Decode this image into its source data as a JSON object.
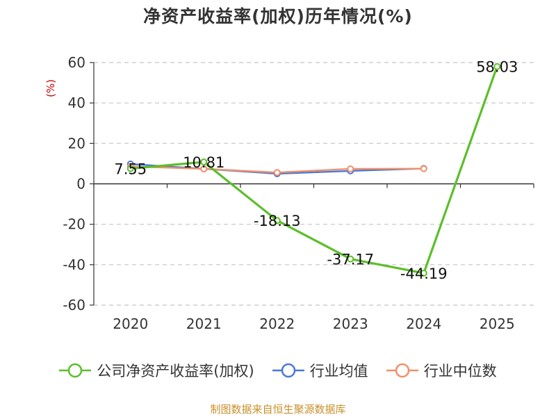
{
  "chart_data": {
    "type": "line",
    "title": "净资产收益率(加权)历年情况(%)",
    "ylabel": "(%)",
    "ylim": [
      -60,
      60
    ],
    "yticks": [
      60,
      40,
      20,
      0,
      -20,
      -40,
      -60
    ],
    "categories": [
      "2020",
      "2021",
      "2022",
      "2023",
      "2024",
      "2025"
    ],
    "grid": true,
    "legend_position": "bottom",
    "series": [
      {
        "name": "公司净资产收益率(加权)",
        "color": "#5bbf2a",
        "values": [
          7.55,
          10.81,
          -18.13,
          -37.17,
          -44.19,
          58.03
        ],
        "labels": [
          "7.55",
          "10.81",
          "-18.13",
          "-37.17",
          "-44.19",
          "58.03"
        ]
      },
      {
        "name": "行业均值",
        "color": "#4a78d6",
        "values": [
          9.8,
          7.4,
          5.0,
          6.4,
          7.6,
          null
        ]
      },
      {
        "name": "行业中位数",
        "color": "#f0906a",
        "values": [
          8.6,
          7.4,
          5.6,
          7.4,
          7.5,
          null
        ]
      }
    ]
  },
  "source_text": "制图数据来自恒生聚源数据库"
}
